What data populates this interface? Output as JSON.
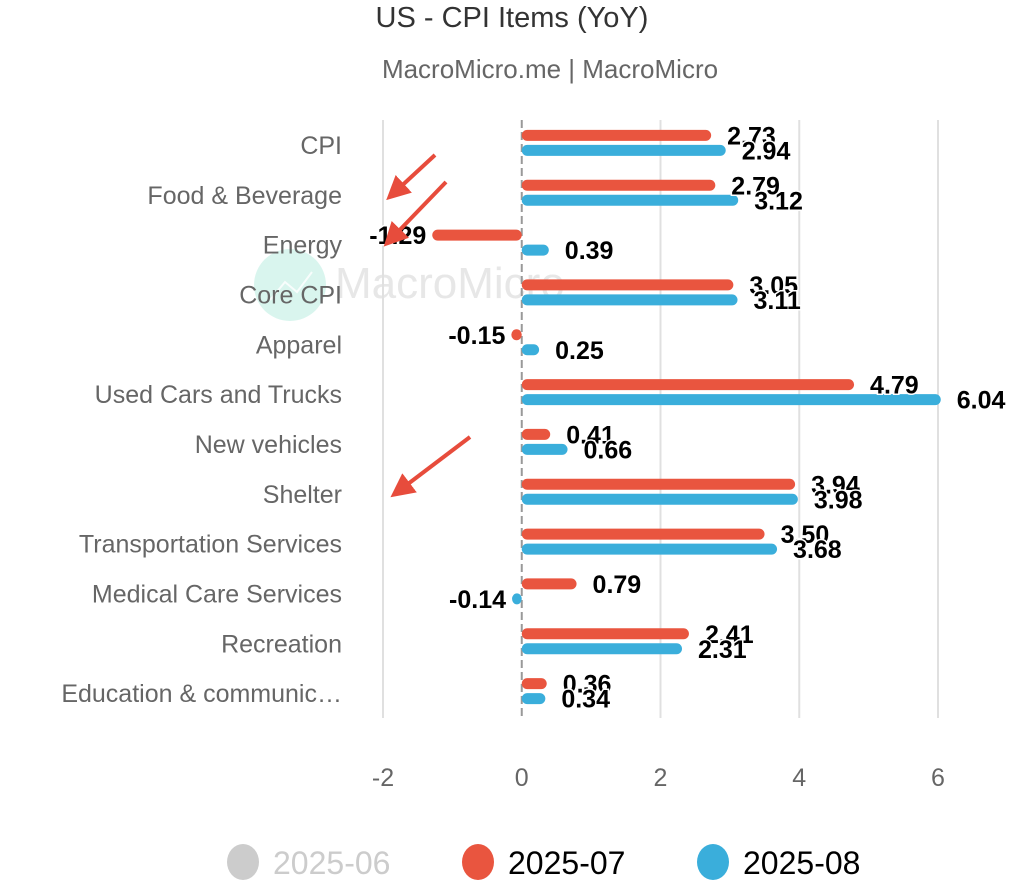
{
  "chart_data": {
    "type": "bar",
    "orientation": "horizontal",
    "title": "US - CPI Items (YoY)",
    "subtitle": "MacroMicro.me | MacroMicro",
    "watermark": "MacroMicro",
    "categories": [
      "CPI",
      "Food & Beverage",
      "Energy",
      "Core CPI",
      "Apparel",
      "Used Cars and Trucks",
      "New vehicles",
      "Shelter",
      "Transportation Services",
      "Medical Care Services",
      "Recreation",
      "Education & communic…"
    ],
    "series": [
      {
        "name": "2025-06",
        "color": "#cccccc",
        "visible": false,
        "values": []
      },
      {
        "name": "2025-07",
        "color": "#e9553f",
        "visible": true,
        "values": [
          2.73,
          2.79,
          -1.29,
          3.05,
          -0.15,
          4.79,
          0.41,
          3.94,
          3.5,
          0.79,
          2.41,
          0.36
        ],
        "labels": [
          "2.73",
          "2.79",
          "-1.29",
          "3.05",
          "-0.15",
          "4.79",
          "0.41",
          "3.94",
          "3.50",
          "0.79",
          "2.41",
          "0.36"
        ]
      },
      {
        "name": "2025-08",
        "color": "#3aaedb",
        "visible": true,
        "values": [
          2.94,
          3.12,
          0.39,
          3.11,
          0.25,
          6.04,
          0.66,
          3.98,
          3.68,
          -0.14,
          2.31,
          0.34
        ],
        "labels": [
          "2.94",
          "3.12",
          "0.39",
          "3.11",
          "0.25",
          "6.04",
          "0.66",
          "3.98",
          "3.68",
          "-0.14",
          "2.31",
          "0.34"
        ]
      }
    ],
    "xlabel": "",
    "ylabel": "",
    "xlim": [
      -2,
      6
    ],
    "xticks": [
      -2,
      0,
      2,
      4,
      6
    ],
    "xtick_labels": [
      "-2",
      "0",
      "2",
      "4",
      "6"
    ],
    "grid": true,
    "zero_line": "dashed",
    "legend_position": "bottom-center",
    "annotations": [
      {
        "type": "arrow",
        "color": "#e74c3c",
        "points_to": "Food & Beverage"
      },
      {
        "type": "arrow",
        "color": "#e74c3c",
        "points_to": "Energy"
      },
      {
        "type": "arrow",
        "color": "#e74c3c",
        "points_to": "Shelter"
      }
    ]
  }
}
